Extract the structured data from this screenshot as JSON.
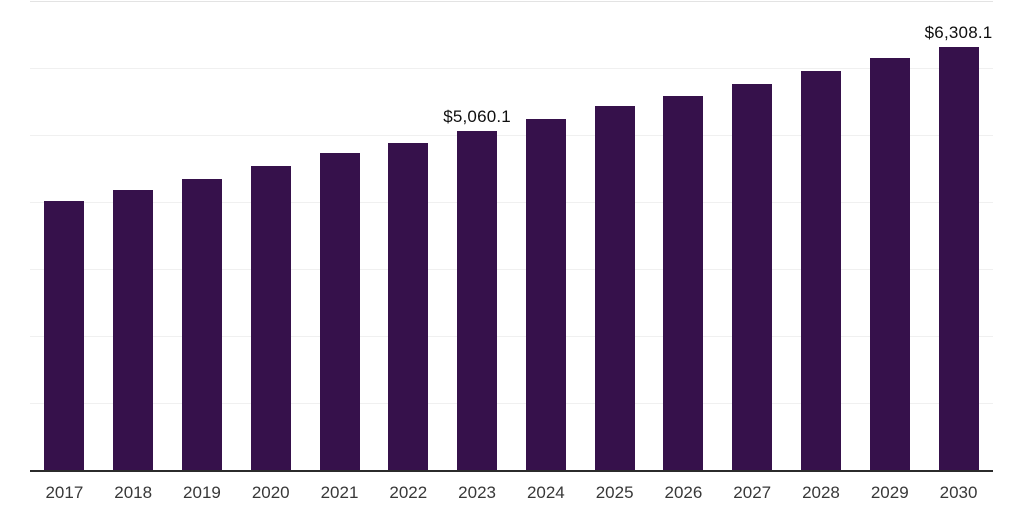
{
  "chart": {
    "background": "#ffffff",
    "bar_color": "#36114b",
    "axis_color": "#2b2b2b",
    "gridline_color": "#f0f0f0",
    "top_gridline_color": "#e3e3e3",
    "value_label_color": "#0f0f0f",
    "tick_label_color": "#383838"
  },
  "chart_data": {
    "type": "bar",
    "title": "",
    "xlabel": "",
    "ylabel": "",
    "categories": [
      "2017",
      "2018",
      "2019",
      "2020",
      "2021",
      "2022",
      "2023",
      "2024",
      "2025",
      "2026",
      "2027",
      "2028",
      "2029",
      "2030"
    ],
    "values": [
      4020,
      4180,
      4345,
      4540,
      4730,
      4880,
      5060.1,
      5240,
      5430,
      5580,
      5765,
      5950,
      6150,
      6308.1
    ],
    "annotations": {
      "2023": "$5,060.1",
      "2030": "$6,308.1"
    },
    "ylim": [
      0,
      7000
    ],
    "gridline_interval": 1000,
    "grid": true,
    "y_axis_labels_visible": false,
    "legend_position": "none"
  }
}
